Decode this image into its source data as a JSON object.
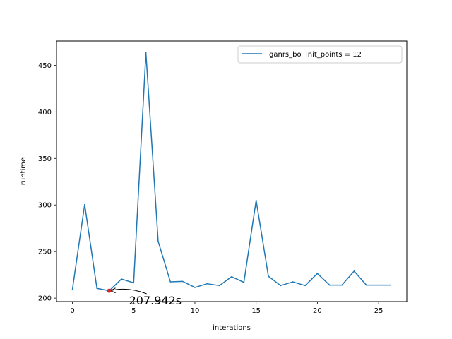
{
  "chart_data": {
    "type": "line",
    "title": "",
    "xlabel": "interations",
    "ylabel": "runtime",
    "xlim": [
      -1.3,
      27.3
    ],
    "ylim": [
      196.3,
      476.1
    ],
    "xticks": [
      0,
      5,
      10,
      15,
      20,
      25
    ],
    "yticks": [
      200,
      250,
      300,
      350,
      400,
      450
    ],
    "grid": false,
    "legend_position": "top-right",
    "series": [
      {
        "name": "ganrs_bo  init_points = 12",
        "color": "#1f77b4",
        "x": [
          0,
          1,
          2,
          3,
          4,
          5,
          6,
          7,
          8,
          9,
          10,
          11,
          12,
          13,
          14,
          15,
          16,
          17,
          18,
          19,
          20,
          21,
          22,
          23,
          24,
          25,
          26
        ],
        "y": [
          209.5,
          300.5,
          210.5,
          207.942,
          220.5,
          216.5,
          463.5,
          261,
          217.5,
          218,
          211.5,
          215.5,
          213.5,
          223,
          217,
          305,
          223.5,
          213.5,
          217.5,
          213.5,
          226.5,
          214,
          214,
          229,
          214,
          214,
          214
        ]
      }
    ],
    "annotation": {
      "text": "207.942s",
      "point": {
        "x": 3,
        "y": 207.942
      },
      "text_at": {
        "x": 6,
        "y": 204
      },
      "marker_color": "#d62728"
    }
  }
}
